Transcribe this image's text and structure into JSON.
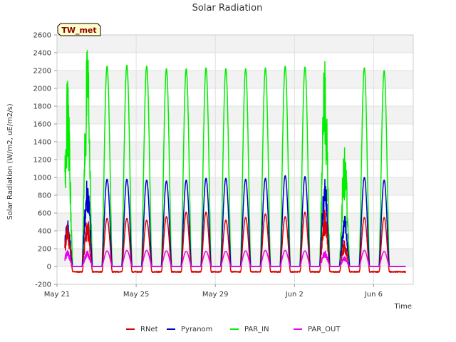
{
  "chart_data": {
    "type": "line",
    "title": "Solar Radiation",
    "xlabel": "Time",
    "ylabel": "Solar Radiation (W/m2, uE/m2/s)",
    "ylim": [
      -200,
      2600
    ],
    "yticks": [
      -200,
      0,
      200,
      400,
      600,
      800,
      1000,
      1200,
      1400,
      1600,
      1800,
      2000,
      2200,
      2400,
      2600
    ],
    "xlim": [
      "2024-05-21",
      "2024-06-08"
    ],
    "xticks": [
      {
        "date": "2024-05-21",
        "label": "May 21"
      },
      {
        "date": "2024-05-25",
        "label": "May 25"
      },
      {
        "date": "2024-05-29",
        "label": "May 29"
      },
      {
        "date": "2024-06-02",
        "label": "Jun 2"
      },
      {
        "date": "2024-06-06",
        "label": "Jun 6"
      }
    ],
    "grid": true,
    "legend_position": "bottom",
    "annotation": "TW_met",
    "days": [
      "2024-05-21",
      "2024-05-22",
      "2024-05-23",
      "2024-05-24",
      "2024-05-25",
      "2024-05-26",
      "2024-05-27",
      "2024-05-28",
      "2024-05-29",
      "2024-05-30",
      "2024-05-31",
      "2024-06-01",
      "2024-06-02",
      "2024-06-03",
      "2024-06-04",
      "2024-06-05",
      "2024-06-06",
      "2024-06-07"
    ],
    "series": [
      {
        "name": "RNet",
        "color": "#dd0000",
        "night_value": -60,
        "daily_peak": [
          480,
          560,
          540,
          540,
          520,
          560,
          610,
          610,
          520,
          550,
          590,
          560,
          610,
          650,
          300,
          550,
          550,
          0
        ]
      },
      {
        "name": "Pyranom",
        "color": "#0000cc",
        "night_value": 0,
        "daily_peak": [
          560,
          1070,
          980,
          980,
          970,
          960,
          970,
          990,
          990,
          980,
          990,
          1020,
          1010,
          1060,
          610,
          1000,
          970,
          0
        ]
      },
      {
        "name": "PAR_IN",
        "color": "#00ee00",
        "night_value": 0,
        "daily_peak": [
          2100,
          2450,
          2250,
          2260,
          2250,
          2220,
          2220,
          2230,
          2220,
          2220,
          2230,
          2250,
          2240,
          2350,
          1350,
          2230,
          2200,
          0
        ]
      },
      {
        "name": "PAR_OUT",
        "color": "#ee00ee",
        "night_value": 0,
        "daily_peak": [
          180,
          180,
          175,
          180,
          180,
          175,
          170,
          170,
          170,
          175,
          180,
          180,
          175,
          180,
          110,
          180,
          170,
          0
        ]
      }
    ]
  }
}
